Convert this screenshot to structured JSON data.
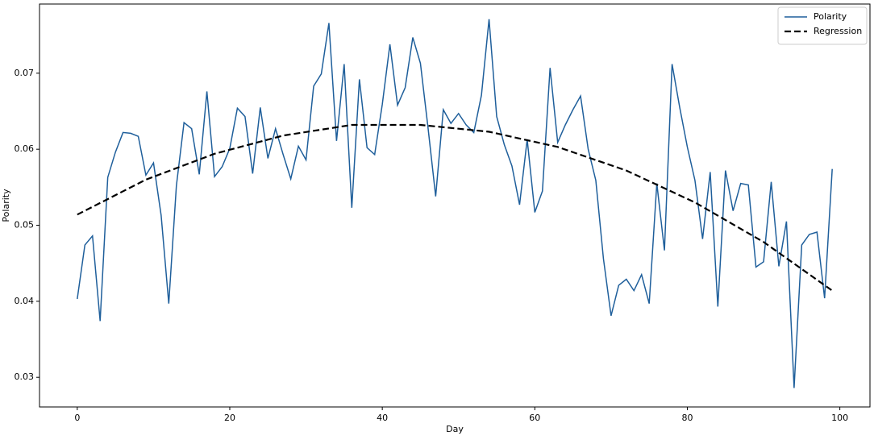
{
  "chart_data": {
    "type": "line",
    "xlabel": "Day",
    "ylabel": "Polarity",
    "xlim": [
      -4.95,
      103.95
    ],
    "ylim": [
      0.0261,
      0.0791
    ],
    "xticks": [
      0,
      20,
      40,
      60,
      80,
      100
    ],
    "yticks": [
      0.03,
      0.04,
      0.05,
      0.06,
      0.07
    ],
    "legend": "upper right",
    "series": [
      {
        "name": "Polarity",
        "color": "#1f5f9b",
        "linestyle": "solid",
        "x": [
          0,
          1,
          2,
          3,
          4,
          5,
          6,
          7,
          8,
          9,
          10,
          11,
          12,
          13,
          14,
          15,
          16,
          17,
          18,
          19,
          20,
          21,
          22,
          23,
          24,
          25,
          26,
          27,
          28,
          29,
          30,
          31,
          32,
          33,
          34,
          35,
          36,
          37,
          38,
          39,
          40,
          41,
          42,
          43,
          44,
          45,
          46,
          47,
          48,
          49,
          50,
          51,
          52,
          53,
          54,
          55,
          56,
          57,
          58,
          59,
          60,
          61,
          62,
          63,
          64,
          65,
          66,
          67,
          68,
          69,
          70,
          71,
          72,
          73,
          74,
          75,
          76,
          77,
          78,
          79,
          80,
          81,
          82,
          83,
          84,
          85,
          86,
          87,
          88,
          89,
          90,
          91,
          92,
          93,
          94,
          95,
          96,
          97,
          98,
          99
        ],
        "values": [
          0.0403,
          0.0474,
          0.0486,
          0.0374,
          0.0563,
          0.0596,
          0.0622,
          0.0621,
          0.0617,
          0.0566,
          0.0582,
          0.0513,
          0.0397,
          0.0552,
          0.0635,
          0.0627,
          0.0567,
          0.0676,
          0.0564,
          0.0577,
          0.0601,
          0.0654,
          0.0643,
          0.0568,
          0.0655,
          0.0588,
          0.0627,
          0.0593,
          0.0561,
          0.0604,
          0.0586,
          0.0683,
          0.0699,
          0.0766,
          0.0611,
          0.0712,
          0.0523,
          0.0692,
          0.0602,
          0.0593,
          0.0659,
          0.0738,
          0.0658,
          0.0681,
          0.0747,
          0.0713,
          0.0628,
          0.0538,
          0.0652,
          0.0634,
          0.0647,
          0.0632,
          0.0622,
          0.0671,
          0.0771,
          0.0643,
          0.0606,
          0.0578,
          0.0527,
          0.0613,
          0.0517,
          0.0545,
          0.0707,
          0.0609,
          0.0632,
          0.0652,
          0.067,
          0.06,
          0.0559,
          0.0456,
          0.0381,
          0.0421,
          0.0429,
          0.0414,
          0.0435,
          0.0397,
          0.0555,
          0.0467,
          0.0712,
          0.0655,
          0.0603,
          0.0559,
          0.0482,
          0.057,
          0.0393,
          0.0572,
          0.0519,
          0.0555,
          0.0553,
          0.0445,
          0.0452,
          0.0557,
          0.0446,
          0.0505,
          0.0286,
          0.0474,
          0.0488,
          0.0491,
          0.0404,
          0.0574
        ]
      },
      {
        "name": "Regression",
        "color": "#000000",
        "linestyle": "dashed",
        "x": [
          0,
          9,
          18,
          27,
          36,
          45,
          54,
          63,
          72,
          81,
          90,
          99
        ],
        "values": [
          0.0514,
          0.056,
          0.0594,
          0.0618,
          0.0632,
          0.0632,
          0.0623,
          0.0603,
          0.0572,
          0.053,
          0.0478,
          0.0414
        ]
      }
    ]
  }
}
